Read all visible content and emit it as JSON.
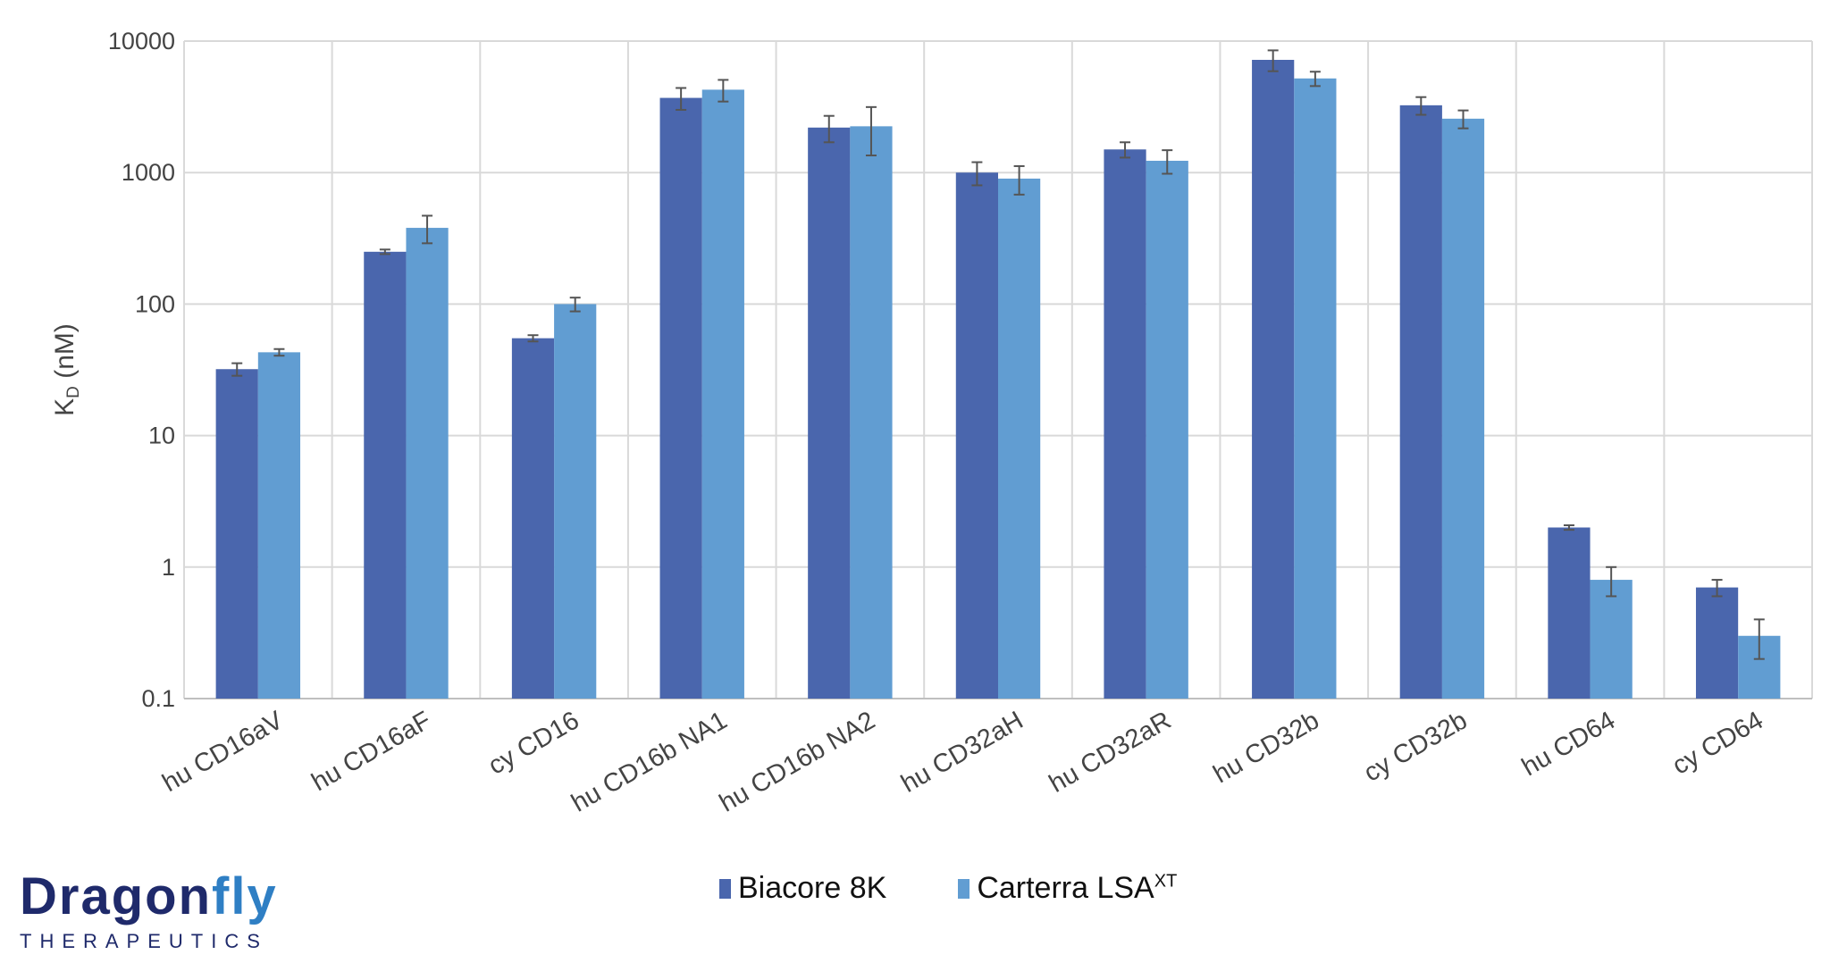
{
  "chart_data": {
    "type": "bar",
    "title": "",
    "xlabel": "",
    "ylabel_main": "K",
    "ylabel_sub": "D",
    "ylabel_unit": " (nM)",
    "yscale": "log",
    "ylim": [
      0.1,
      10000
    ],
    "yticks": [
      "0.1",
      "1",
      "10",
      "100",
      "1000",
      "10000"
    ],
    "grid": true,
    "legend_position": "bottom",
    "categories": [
      "hu CD16aV",
      "hu CD16aF",
      "cy CD16",
      "hu CD16b NA1",
      "hu CD16b NA2",
      "hu CD32aH",
      "hu CD32aR",
      "hu CD32b",
      "cy CD32b",
      "hu CD64",
      "cy CD64"
    ],
    "series": [
      {
        "name": "Biacore 8K",
        "name_sup": "",
        "color": "#4a66ad",
        "values": [
          32,
          250,
          55,
          3700,
          2200,
          1000,
          1500,
          7200,
          3250,
          2.0,
          0.7
        ],
        "errors": [
          3.5,
          10,
          3,
          700,
          500,
          200,
          200,
          1300,
          500,
          0.08,
          0.1
        ]
      },
      {
        "name": "Carterra LSA",
        "name_sup": "XT",
        "color": "#619dd2",
        "values": [
          43,
          380,
          100,
          4270,
          2250,
          900,
          1230,
          5200,
          2570,
          0.8,
          0.3
        ],
        "errors": [
          2.5,
          90,
          12,
          800,
          900,
          220,
          250,
          650,
          400,
          0.2,
          0.1
        ]
      }
    ]
  },
  "logo": {
    "main": "Dragon",
    "accent": "fly",
    "sub": "THERAPEUTICS"
  }
}
